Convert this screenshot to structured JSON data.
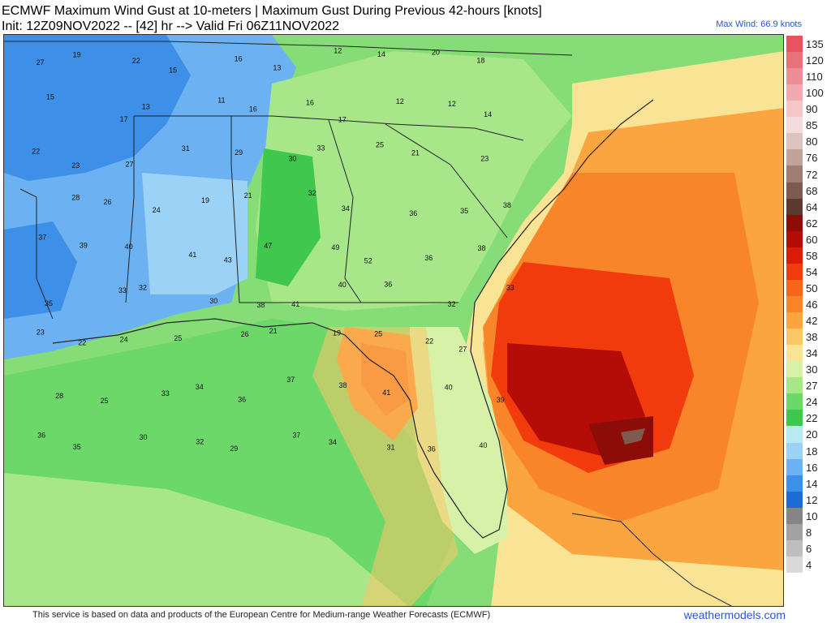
{
  "header": {
    "line1": "ECMWF Maximum Wind Gust at 10-meters | Maximum Gust During Previous 42-hours [knots]",
    "line2": "Init: 12Z09NOV2022 -- [42] hr --> Valid Fri 06Z11NOV2022",
    "max_wind": "Max Wind: 66.9 knots"
  },
  "footer": {
    "credit": "This service is based on data and products of the European Centre for Medium-range Weather Forecasts (ECMWF)",
    "brand": "weathermodels.com"
  },
  "legend": [
    {
      "label": "135",
      "color": "#e7535e"
    },
    {
      "label": "120",
      "color": "#e8727a"
    },
    {
      "label": "110",
      "color": "#ec8e95"
    },
    {
      "label": "100",
      "color": "#f1aab0"
    },
    {
      "label": "90",
      "color": "#f5c6ca"
    },
    {
      "label": "85",
      "color": "#f4dcdc"
    },
    {
      "label": "80",
      "color": "#dcc4c0"
    },
    {
      "label": "76",
      "color": "#c1a39c"
    },
    {
      "label": "72",
      "color": "#a07c74"
    },
    {
      "label": "68",
      "color": "#7e5a51"
    },
    {
      "label": "64",
      "color": "#5c3a31"
    },
    {
      "label": "62",
      "color": "#8c0d07"
    },
    {
      "label": "60",
      "color": "#b40d07"
    },
    {
      "label": "58",
      "color": "#dc1a07"
    },
    {
      "label": "54",
      "color": "#f23b0d"
    },
    {
      "label": "50",
      "color": "#f6661a"
    },
    {
      "label": "46",
      "color": "#f9852b"
    },
    {
      "label": "42",
      "color": "#fba540"
    },
    {
      "label": "38",
      "color": "#fbc767"
    },
    {
      "label": "34",
      "color": "#f9e394"
    },
    {
      "label": "30",
      "color": "#d7f1a9"
    },
    {
      "label": "27",
      "color": "#a7e689"
    },
    {
      "label": "24",
      "color": "#6dd86a"
    },
    {
      "label": "22",
      "color": "#3fc74e"
    },
    {
      "label": "20",
      "color": "#b9e9f3"
    },
    {
      "label": "18",
      "color": "#9bd2f5"
    },
    {
      "label": "16",
      "color": "#6cb2f2"
    },
    {
      "label": "14",
      "color": "#3d8fe7"
    },
    {
      "label": "12",
      "color": "#1f6bd5"
    },
    {
      "label": "10",
      "color": "#858585"
    },
    {
      "label": "8",
      "color": "#a2a2a2"
    },
    {
      "label": "6",
      "color": "#bebebe"
    },
    {
      "label": "4",
      "color": "#d9d9d9"
    }
  ],
  "station_values": [
    {
      "v": "27"
    },
    {
      "v": "19"
    },
    {
      "v": "22"
    },
    {
      "v": "15"
    },
    {
      "v": "16"
    },
    {
      "v": "13"
    },
    {
      "v": "12"
    },
    {
      "v": "14"
    },
    {
      "v": "20"
    },
    {
      "v": "18"
    },
    {
      "v": "15"
    },
    {
      "v": "17"
    },
    {
      "v": "13"
    },
    {
      "v": "11"
    },
    {
      "v": "16"
    },
    {
      "v": "16"
    },
    {
      "v": "17"
    },
    {
      "v": "12"
    },
    {
      "v": "12"
    },
    {
      "v": "14"
    },
    {
      "v": "22"
    },
    {
      "v": "23"
    },
    {
      "v": "27"
    },
    {
      "v": "31"
    },
    {
      "v": "29"
    },
    {
      "v": "30"
    },
    {
      "v": "33"
    },
    {
      "v": "25"
    },
    {
      "v": "21"
    },
    {
      "v": "23"
    },
    {
      "v": "28"
    },
    {
      "v": "26"
    },
    {
      "v": "24"
    },
    {
      "v": "19"
    },
    {
      "v": "21"
    },
    {
      "v": "32"
    },
    {
      "v": "34"
    },
    {
      "v": "36"
    },
    {
      "v": "35"
    },
    {
      "v": "38"
    },
    {
      "v": "37"
    },
    {
      "v": "39"
    },
    {
      "v": "40"
    },
    {
      "v": "41"
    },
    {
      "v": "43"
    },
    {
      "v": "47"
    },
    {
      "v": "49"
    },
    {
      "v": "52"
    },
    {
      "v": "36"
    },
    {
      "v": "38"
    },
    {
      "v": "35"
    },
    {
      "v": "33"
    },
    {
      "v": "32"
    },
    {
      "v": "30"
    },
    {
      "v": "38"
    },
    {
      "v": "41"
    },
    {
      "v": "40"
    },
    {
      "v": "36"
    },
    {
      "v": "32"
    },
    {
      "v": "33"
    },
    {
      "v": "23"
    },
    {
      "v": "22"
    },
    {
      "v": "24"
    },
    {
      "v": "25"
    },
    {
      "v": "26"
    },
    {
      "v": "21"
    },
    {
      "v": "19"
    },
    {
      "v": "25"
    },
    {
      "v": "22"
    },
    {
      "v": "27"
    },
    {
      "v": "28"
    },
    {
      "v": "25"
    },
    {
      "v": "33"
    },
    {
      "v": "34"
    },
    {
      "v": "36"
    },
    {
      "v": "37"
    },
    {
      "v": "38"
    },
    {
      "v": "41"
    },
    {
      "v": "40"
    },
    {
      "v": "39"
    },
    {
      "v": "36"
    },
    {
      "v": "35"
    },
    {
      "v": "30"
    },
    {
      "v": "32"
    },
    {
      "v": "29"
    },
    {
      "v": "37"
    },
    {
      "v": "34"
    },
    {
      "v": "31"
    },
    {
      "v": "36"
    },
    {
      "v": "40"
    }
  ]
}
